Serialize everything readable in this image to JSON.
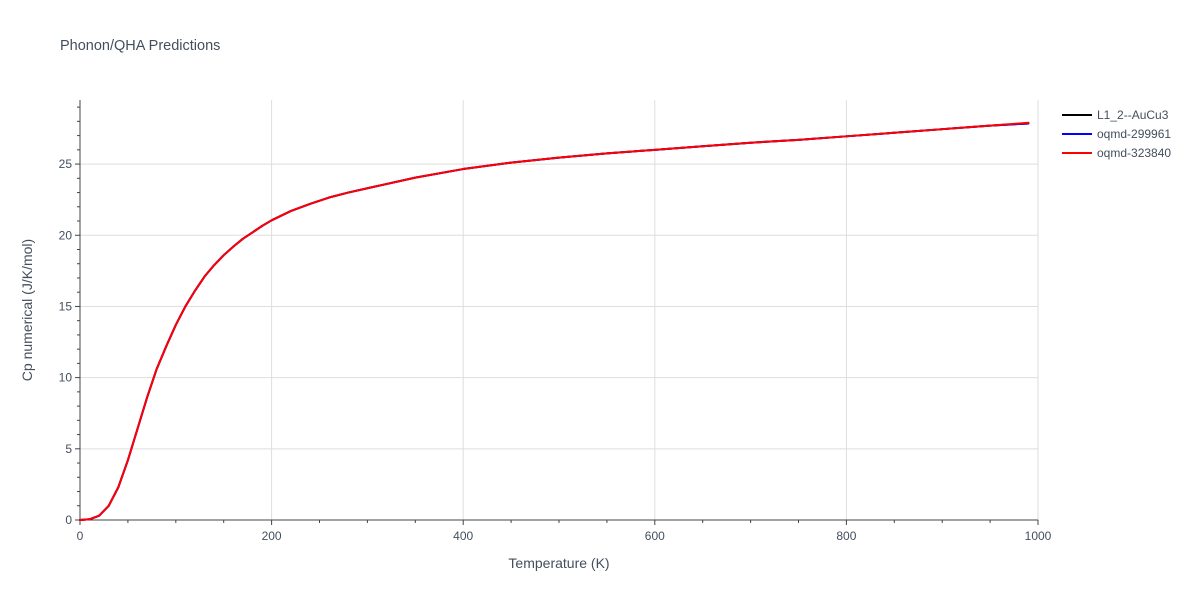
{
  "chart_data": {
    "type": "line",
    "title": "Phonon/QHA Predictions",
    "xlabel": "Temperature (K)",
    "ylabel": "Cp numerical (J/K/mol)",
    "xlim": [
      0,
      1000
    ],
    "ylim": [
      0,
      29.5
    ],
    "xticks": [
      0,
      200,
      400,
      600,
      800,
      1000
    ],
    "yticks": [
      0,
      5,
      10,
      15,
      20,
      25
    ],
    "grid": true,
    "legend_position": "right",
    "series": [
      {
        "name": "L1_2--AuCu3",
        "color": "#000000",
        "x": [
          0,
          10,
          20,
          30,
          40,
          50,
          60,
          70,
          80,
          90,
          100,
          110,
          120,
          130,
          140,
          150,
          160,
          170,
          180,
          190,
          200,
          220,
          240,
          260,
          280,
          300,
          350,
          400,
          450,
          500,
          550,
          600,
          650,
          700,
          750,
          800,
          850,
          900,
          950,
          990
        ],
        "y": [
          0,
          0.05,
          0.3,
          1.0,
          2.3,
          4.2,
          6.4,
          8.6,
          10.6,
          12.2,
          13.7,
          15.0,
          16.1,
          17.1,
          17.9,
          18.6,
          19.2,
          19.75,
          20.2,
          20.65,
          21.05,
          21.7,
          22.2,
          22.65,
          23.0,
          23.3,
          24.05,
          24.65,
          25.1,
          25.45,
          25.75,
          26.0,
          26.25,
          26.5,
          26.7,
          26.95,
          27.2,
          27.45,
          27.7,
          27.85
        ]
      },
      {
        "name": "oqmd-299961",
        "color": "#0000ff",
        "x": [
          0,
          10,
          20,
          30,
          40,
          50,
          60,
          70,
          80,
          90,
          100,
          110,
          120,
          130,
          140,
          150,
          160,
          170,
          180,
          190,
          200,
          220,
          240,
          260,
          280,
          300,
          350,
          400,
          450,
          500,
          550,
          600,
          650,
          700,
          750,
          800,
          850,
          900,
          950,
          990
        ],
        "y": [
          0,
          0.05,
          0.3,
          1.0,
          2.3,
          4.2,
          6.4,
          8.6,
          10.6,
          12.2,
          13.7,
          15.0,
          16.1,
          17.1,
          17.9,
          18.6,
          19.2,
          19.75,
          20.2,
          20.65,
          21.05,
          21.7,
          22.2,
          22.65,
          23.0,
          23.3,
          24.05,
          24.65,
          25.1,
          25.45,
          25.75,
          26.0,
          26.25,
          26.5,
          26.7,
          26.95,
          27.2,
          27.45,
          27.7,
          27.85
        ]
      },
      {
        "name": "oqmd-323840",
        "color": "#ff0000",
        "x": [
          0,
          10,
          20,
          30,
          40,
          50,
          60,
          70,
          80,
          90,
          100,
          110,
          120,
          130,
          140,
          150,
          160,
          170,
          180,
          190,
          200,
          220,
          240,
          260,
          280,
          300,
          350,
          400,
          450,
          500,
          550,
          600,
          650,
          700,
          750,
          800,
          850,
          900,
          950,
          990
        ],
        "y": [
          0,
          0.05,
          0.3,
          1.0,
          2.3,
          4.2,
          6.4,
          8.6,
          10.6,
          12.2,
          13.7,
          15.0,
          16.1,
          17.1,
          17.9,
          18.6,
          19.2,
          19.75,
          20.2,
          20.65,
          21.05,
          21.7,
          22.2,
          22.65,
          23.0,
          23.3,
          24.05,
          24.65,
          25.1,
          25.45,
          25.75,
          26.0,
          26.25,
          26.5,
          26.7,
          26.95,
          27.2,
          27.45,
          27.7,
          27.9
        ]
      }
    ]
  }
}
